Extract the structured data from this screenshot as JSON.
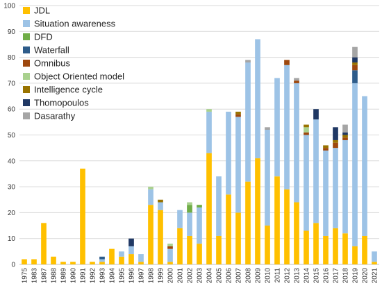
{
  "chart_data": {
    "type": "bar",
    "stacked": true,
    "title": "",
    "xlabel": "",
    "ylabel": "",
    "ylim": [
      0,
      100
    ],
    "yticks": [
      0,
      10,
      20,
      30,
      40,
      50,
      60,
      70,
      80,
      90,
      100
    ],
    "grid": true,
    "legend": "top-left",
    "categories": [
      "1975",
      "1983",
      "1987",
      "1988",
      "1989",
      "1990",
      "1991",
      "1992",
      "1993",
      "1994",
      "1995",
      "1996",
      "1997",
      "1998",
      "1999",
      "2000",
      "2001",
      "2002",
      "2003",
      "2004",
      "2005",
      "2006",
      "2007",
      "2008",
      "2009",
      "2010",
      "2011",
      "2012",
      "2013",
      "2014",
      "2015",
      "2016",
      "2017",
      "2018",
      "2019",
      "2020",
      "2021"
    ],
    "series": [
      {
        "name": "JDL",
        "color": "#FFC000",
        "values": [
          2,
          2,
          16,
          3,
          1,
          1,
          37,
          1,
          1,
          6,
          3,
          4,
          1,
          23,
          21,
          1,
          14,
          11,
          8,
          43,
          11,
          27,
          20,
          32,
          41,
          15,
          34,
          29,
          24,
          13,
          16,
          11,
          14,
          12,
          7,
          11,
          1
        ]
      },
      {
        "name": "Situation awareness",
        "color": "#9DC3E6",
        "values": [
          0,
          0,
          0,
          0,
          0,
          0,
          0,
          0,
          1,
          0,
          2,
          3,
          3,
          6,
          3,
          5,
          7,
          9,
          14,
          16,
          23,
          32,
          37,
          46,
          46,
          37,
          38,
          48,
          46,
          37,
          40,
          33,
          31,
          36,
          63,
          54,
          4
        ]
      },
      {
        "name": "DFD",
        "color": "#70AD47",
        "values": [
          0,
          0,
          0,
          0,
          0,
          0,
          0,
          0,
          0,
          0,
          0,
          0,
          0,
          0,
          0,
          0,
          0,
          3,
          1,
          0,
          0,
          0,
          0,
          0,
          0,
          0,
          0,
          0,
          0,
          0,
          0,
          0,
          0,
          0,
          0,
          0,
          0
        ]
      },
      {
        "name": "Waterfall",
        "color": "#2E5C8A",
        "values": [
          0,
          0,
          0,
          0,
          0,
          0,
          0,
          0,
          1,
          0,
          0,
          0,
          0,
          0,
          0,
          0,
          0,
          0,
          0,
          0,
          0,
          0,
          0,
          0,
          0,
          0,
          0,
          0,
          0,
          0,
          0,
          0,
          0,
          0,
          5,
          0,
          0
        ]
      },
      {
        "name": "Omnibus",
        "color": "#9E480E",
        "values": [
          0,
          0,
          0,
          0,
          0,
          0,
          0,
          0,
          0,
          0,
          0,
          0,
          0,
          0,
          0,
          1,
          0,
          0,
          0,
          0,
          0,
          0,
          1,
          0,
          0,
          0,
          0,
          2,
          1,
          1,
          0,
          1,
          2,
          1,
          2,
          0,
          0
        ]
      },
      {
        "name": "Object Oriented model",
        "color": "#A9D18E",
        "values": [
          0,
          0,
          0,
          0,
          0,
          0,
          0,
          0,
          0,
          0,
          0,
          0,
          0,
          1,
          0,
          1,
          0,
          1,
          0,
          1,
          0,
          0,
          0,
          0,
          0,
          0,
          0,
          0,
          0,
          2,
          0,
          0,
          0,
          0,
          0,
          0,
          0
        ]
      },
      {
        "name": "Intelligence cycle",
        "color": "#997300",
        "values": [
          0,
          0,
          0,
          0,
          0,
          0,
          0,
          0,
          0,
          0,
          0,
          0,
          0,
          0,
          1,
          0,
          0,
          0,
          0,
          0,
          0,
          0,
          1,
          0,
          0,
          0,
          0,
          0,
          0,
          1,
          0,
          1,
          1,
          1,
          1,
          0,
          0
        ]
      },
      {
        "name": "Thomopoulos",
        "color": "#203864",
        "values": [
          0,
          0,
          0,
          0,
          0,
          0,
          0,
          0,
          0,
          0,
          0,
          3,
          0,
          0,
          0,
          0,
          0,
          0,
          0,
          0,
          0,
          0,
          0,
          0,
          0,
          0,
          0,
          0,
          0,
          0,
          4,
          0,
          5,
          1,
          2,
          0,
          0
        ]
      },
      {
        "name": "Dasarathy",
        "color": "#A5A5A5",
        "values": [
          0,
          0,
          0,
          0,
          0,
          0,
          0,
          0,
          0,
          0,
          0,
          0,
          0,
          0,
          0,
          0,
          0,
          0,
          0,
          0,
          0,
          0,
          0,
          1,
          0,
          1,
          0,
          0,
          1,
          0,
          0,
          0,
          0,
          3,
          4,
          0,
          0
        ]
      }
    ]
  }
}
